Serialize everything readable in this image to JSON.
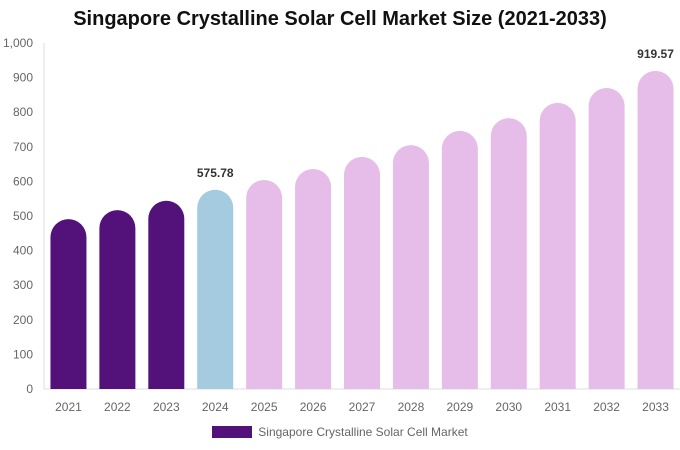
{
  "chart_data": {
    "type": "bar",
    "title": "Singapore Crystalline Solar Cell Market Size (2021-2033)",
    "categories": [
      "2021",
      "2022",
      "2023",
      "2024",
      "2025",
      "2026",
      "2027",
      "2028",
      "2029",
      "2030",
      "2031",
      "2032",
      "2033"
    ],
    "series": [
      {
        "name": "Singapore Crystalline Solar Cell Market",
        "values": [
          491,
          517,
          544,
          575.78,
          604,
          636,
          671,
          705,
          746,
          783,
          827,
          870,
          919.57
        ]
      }
    ],
    "data_labels": {
      "2024": "575.78",
      "2033": "919.57"
    },
    "ylim": [
      0,
      1000
    ],
    "yticks": [
      "0",
      "100",
      "200",
      "300",
      "400",
      "500",
      "600",
      "700",
      "800",
      "900",
      "1,000"
    ],
    "grid": false,
    "legend": "bottom",
    "colors": {
      "historical": "#52127a",
      "base_year": "#a4cbdf",
      "forecast": "#e6bde9"
    }
  }
}
